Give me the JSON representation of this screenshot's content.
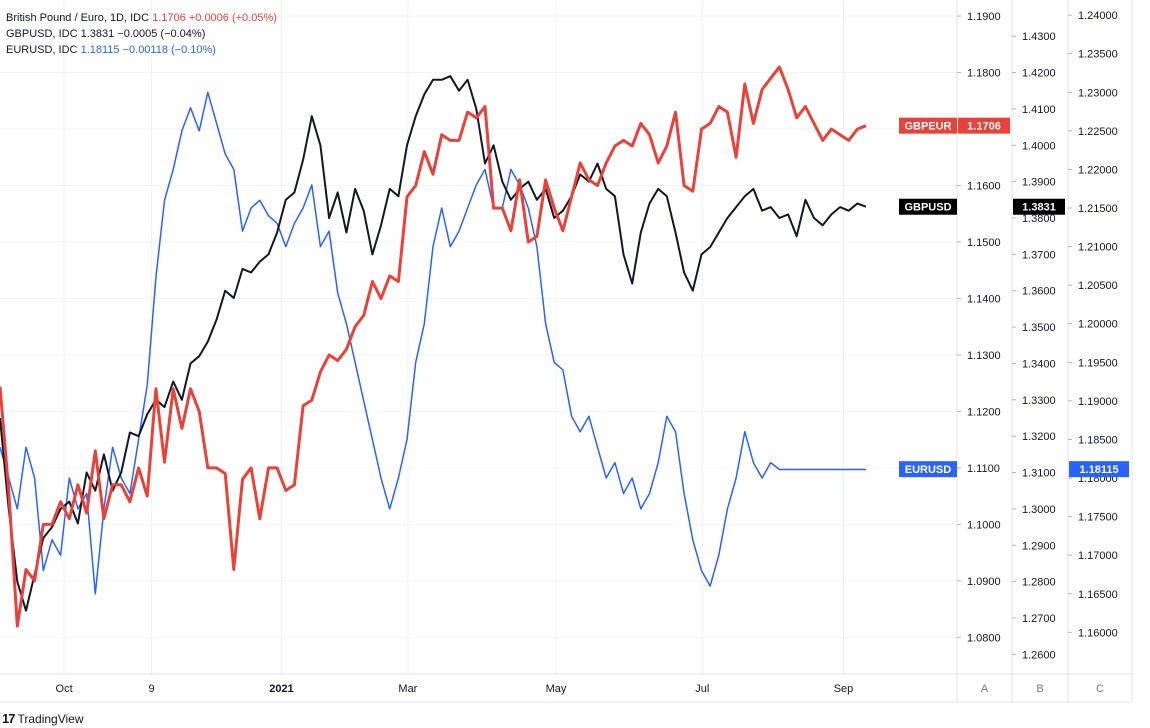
{
  "legend": [
    {
      "name": "British Pound / Euro, 1D, IDC",
      "value": "1.1706",
      "change": "+0.0006 (+0.05%)",
      "color": "#e8433a"
    },
    {
      "name": "GBPUSD, IDC",
      "value": "1.3831",
      "change": "−0.0005 (−0.04%)",
      "color": "#131722"
    },
    {
      "name": "EURUSD, IDC",
      "value": "1.18115",
      "change": "−0.00118 (−0.10%)",
      "color": "#2962ff"
    }
  ],
  "footer": {
    "brand": "TradingView",
    "logo": "17"
  },
  "chart_data": {
    "type": "line",
    "x_labels": [
      "Oct",
      "9",
      "2021",
      "Mar",
      "May",
      "Jul",
      "Sep"
    ],
    "x_range": [
      0,
      100
    ],
    "x_label_positions": [
      7.4,
      17.5,
      32.5,
      47.1,
      64.2,
      81.1,
      97.4
    ],
    "axes": [
      {
        "id": "A",
        "range": [
          1.0735,
          1.1925
        ],
        "ticks": [
          1.08,
          1.09,
          1.1,
          1.11,
          1.12,
          1.13,
          1.14,
          1.15,
          1.16,
          1.17,
          1.18,
          1.19
        ],
        "tick_labels": [
          "1.0800",
          "1.0900",
          "1.1000",
          "1.1100",
          "1.1200",
          "1.1300",
          "1.1400",
          "1.1500",
          "1.1600",
          "1.1700",
          "1.1800",
          "1.1900"
        ]
      },
      {
        "id": "B",
        "range": [
          1.2546,
          1.4394
        ],
        "ticks": [
          1.26,
          1.27,
          1.28,
          1.29,
          1.3,
          1.31,
          1.32,
          1.33,
          1.34,
          1.35,
          1.36,
          1.37,
          1.38,
          1.39,
          1.4,
          1.41,
          1.42,
          1.43
        ],
        "tick_labels": [
          "1.2600",
          "1.2700",
          "1.2800",
          "1.2900",
          "1.3000",
          "1.3100",
          "1.3200",
          "1.3300",
          "1.3400",
          "1.3500",
          "1.3600",
          "1.3700",
          "1.3800",
          "1.3900",
          "1.4000",
          "1.4100",
          "1.4200",
          "1.4300"
        ]
      },
      {
        "id": "C",
        "range": [
          1.1546,
          1.2417
        ],
        "ticks": [
          1.16,
          1.165,
          1.17,
          1.175,
          1.18,
          1.185,
          1.19,
          1.195,
          1.2,
          1.205,
          1.21,
          1.215,
          1.22,
          1.225,
          1.23,
          1.235,
          1.24
        ],
        "tick_labels": [
          "1.16000",
          "1.16500",
          "1.17000",
          "1.17500",
          "1.18000",
          "1.18500",
          "1.19000",
          "1.19500",
          "1.20000",
          "1.20500",
          "1.21000",
          "1.21500",
          "1.22000",
          "1.22500",
          "1.23000",
          "1.23500",
          "1.24000"
        ]
      }
    ],
    "series": [
      {
        "name": "GBPEUR",
        "axis": "A",
        "color": "#e8433a",
        "width": 3,
        "last": "1.1706",
        "x": [
          0,
          1,
          2,
          3,
          4,
          5,
          6,
          7,
          8,
          9,
          10,
          11,
          12,
          13,
          14,
          15,
          16,
          17,
          18,
          19,
          20,
          21,
          22,
          23,
          24,
          25,
          26,
          27,
          28,
          29,
          30,
          31,
          32,
          33,
          34,
          35,
          36,
          37,
          38,
          39,
          40,
          41,
          42,
          43,
          44,
          45,
          46,
          47,
          48,
          49,
          50,
          51,
          52,
          53,
          54,
          55,
          56,
          57,
          58,
          59,
          60,
          61,
          62,
          63,
          64,
          65,
          66,
          67,
          68,
          69,
          70,
          71,
          72,
          73,
          74,
          75,
          76,
          77,
          78,
          79,
          80,
          81,
          82,
          83,
          84,
          85,
          86,
          87,
          88,
          89,
          90,
          91,
          92,
          93,
          94,
          95,
          96,
          97,
          98,
          99,
          100
        ],
        "y": [
          1.1244,
          1.106,
          1.082,
          1.092,
          1.09,
          1.1,
          1.1,
          1.104,
          1.101,
          1.107,
          1.102,
          1.113,
          1.101,
          1.107,
          1.107,
          1.104,
          1.11,
          1.105,
          1.124,
          1.111,
          1.124,
          1.117,
          1.124,
          1.12,
          1.11,
          1.11,
          1.109,
          1.092,
          1.108,
          1.11,
          1.101,
          1.11,
          1.11,
          1.106,
          1.107,
          1.121,
          1.122,
          1.127,
          1.13,
          1.129,
          1.131,
          1.135,
          1.137,
          1.143,
          1.14,
          1.144,
          1.143,
          1.158,
          1.16,
          1.166,
          1.162,
          1.169,
          1.168,
          1.168,
          1.173,
          1.172,
          1.174,
          1.156,
          1.156,
          1.152,
          1.161,
          1.15,
          1.151,
          1.161,
          1.156,
          1.152,
          1.158,
          1.164,
          1.161,
          1.16,
          1.164,
          1.167,
          1.168,
          1.167,
          1.171,
          1.169,
          1.164,
          1.167,
          1.173,
          1.16,
          1.159,
          1.17,
          1.171,
          1.174,
          1.173,
          1.165,
          1.178,
          1.171,
          1.177,
          1.179,
          1.181,
          1.177,
          1.172,
          1.174,
          1.171,
          1.168,
          1.17,
          1.169,
          1.168,
          1.17,
          1.1706
        ]
      },
      {
        "name": "GBPUSD",
        "axis": "B",
        "color": "#131722",
        "width": 2,
        "last": "1.3831",
        "x": [
          0,
          1,
          2,
          3,
          4,
          5,
          6,
          7,
          8,
          9,
          10,
          11,
          12,
          13,
          14,
          15,
          16,
          17,
          18,
          19,
          20,
          21,
          22,
          23,
          24,
          25,
          26,
          27,
          28,
          29,
          30,
          31,
          32,
          33,
          34,
          35,
          36,
          37,
          38,
          39,
          40,
          41,
          42,
          43,
          44,
          45,
          46,
          47,
          48,
          49,
          50,
          51,
          52,
          53,
          54,
          55,
          56,
          57,
          58,
          59,
          60,
          61,
          62,
          63,
          64,
          65,
          66,
          67,
          68,
          69,
          70,
          71,
          72,
          73,
          74,
          75,
          76,
          77,
          78,
          79,
          80,
          81,
          82,
          83,
          84,
          85,
          86,
          87,
          88,
          89,
          90,
          91,
          92,
          93,
          94,
          95,
          96,
          97,
          98,
          99,
          100
        ],
        "y": [
          1.325,
          1.3,
          1.28,
          1.272,
          1.282,
          1.292,
          1.295,
          1.3,
          1.302,
          1.296,
          1.31,
          1.305,
          1.315,
          1.305,
          1.31,
          1.321,
          1.32,
          1.326,
          1.33,
          1.328,
          1.335,
          1.33,
          1.34,
          1.342,
          1.346,
          1.352,
          1.36,
          1.358,
          1.366,
          1.365,
          1.368,
          1.37,
          1.376,
          1.385,
          1.387,
          1.396,
          1.408,
          1.4,
          1.38,
          1.387,
          1.376,
          1.388,
          1.382,
          1.37,
          1.378,
          1.388,
          1.386,
          1.4,
          1.408,
          1.414,
          1.418,
          1.418,
          1.419,
          1.415,
          1.418,
          1.41,
          1.395,
          1.4,
          1.39,
          1.385,
          1.388,
          1.39,
          1.385,
          1.388,
          1.38,
          1.382,
          1.386,
          1.392,
          1.39,
          1.395,
          1.388,
          1.386,
          1.37,
          1.362,
          1.376,
          1.384,
          1.388,
          1.386,
          1.376,
          1.365,
          1.36,
          1.37,
          1.372,
          1.376,
          1.38,
          1.383,
          1.386,
          1.388,
          1.382,
          1.383,
          1.38,
          1.381,
          1.375,
          1.385,
          1.38,
          1.378,
          1.381,
          1.383,
          1.382,
          1.384,
          1.3831
        ]
      },
      {
        "name": "EURUSD",
        "axis": "C",
        "color": "#2962ff",
        "width": 1.5,
        "last": "1.18115",
        "x": [
          0,
          1,
          2,
          3,
          4,
          5,
          6,
          7,
          8,
          9,
          10,
          11,
          12,
          13,
          14,
          15,
          16,
          17,
          18,
          19,
          20,
          21,
          22,
          23,
          24,
          25,
          26,
          27,
          28,
          29,
          30,
          31,
          32,
          33,
          34,
          35,
          36,
          37,
          38,
          39,
          40,
          41,
          42,
          43,
          44,
          45,
          46,
          47,
          48,
          49,
          50,
          51,
          52,
          53,
          54,
          55,
          56,
          57,
          58,
          59,
          60,
          61,
          62,
          63,
          64,
          65,
          66,
          67,
          68,
          69,
          70,
          71,
          72,
          73,
          74,
          75,
          76,
          77,
          78,
          79,
          80,
          81,
          82,
          83,
          84,
          85,
          86,
          87,
          88,
          89,
          90,
          91,
          92,
          93,
          94,
          95,
          96,
          97,
          98,
          99,
          100
        ],
        "y": [
          1.184,
          1.18,
          1.176,
          1.184,
          1.18,
          1.168,
          1.172,
          1.17,
          1.18,
          1.176,
          1.178,
          1.165,
          1.176,
          1.184,
          1.18,
          1.178,
          1.185,
          1.192,
          1.206,
          1.216,
          1.22,
          1.225,
          1.228,
          1.225,
          1.23,
          1.226,
          1.222,
          1.22,
          1.212,
          1.215,
          1.216,
          1.214,
          1.213,
          1.21,
          1.213,
          1.215,
          1.218,
          1.21,
          1.212,
          1.204,
          1.2,
          1.195,
          1.19,
          1.185,
          1.18,
          1.176,
          1.18,
          1.185,
          1.195,
          1.2,
          1.21,
          1.215,
          1.21,
          1.212,
          1.215,
          1.218,
          1.22,
          1.215,
          1.215,
          1.22,
          1.218,
          1.215,
          1.21,
          1.2,
          1.195,
          1.194,
          1.188,
          1.186,
          1.188,
          1.184,
          1.18,
          1.182,
          1.178,
          1.18,
          1.176,
          1.178,
          1.182,
          1.188,
          1.186,
          1.178,
          1.172,
          1.168,
          1.166,
          1.17,
          1.176,
          1.18,
          1.186,
          1.182,
          1.18,
          1.182,
          1.1811,
          1.1811,
          1.1811,
          1.1811,
          1.1811,
          1.1811,
          1.1811,
          1.1811,
          1.1811,
          1.1811,
          1.1811
        ]
      }
    ],
    "axis_footer": [
      "A",
      "B",
      "C"
    ],
    "price_tags": [
      {
        "name": "GBPEUR",
        "value": "1.1706",
        "color": "#e8433a"
      },
      {
        "name": "GBPUSD",
        "value": "1.3831",
        "color": "#000000"
      },
      {
        "name": "EURUSD",
        "value": "1.18115",
        "color": "#2962ff"
      }
    ]
  }
}
